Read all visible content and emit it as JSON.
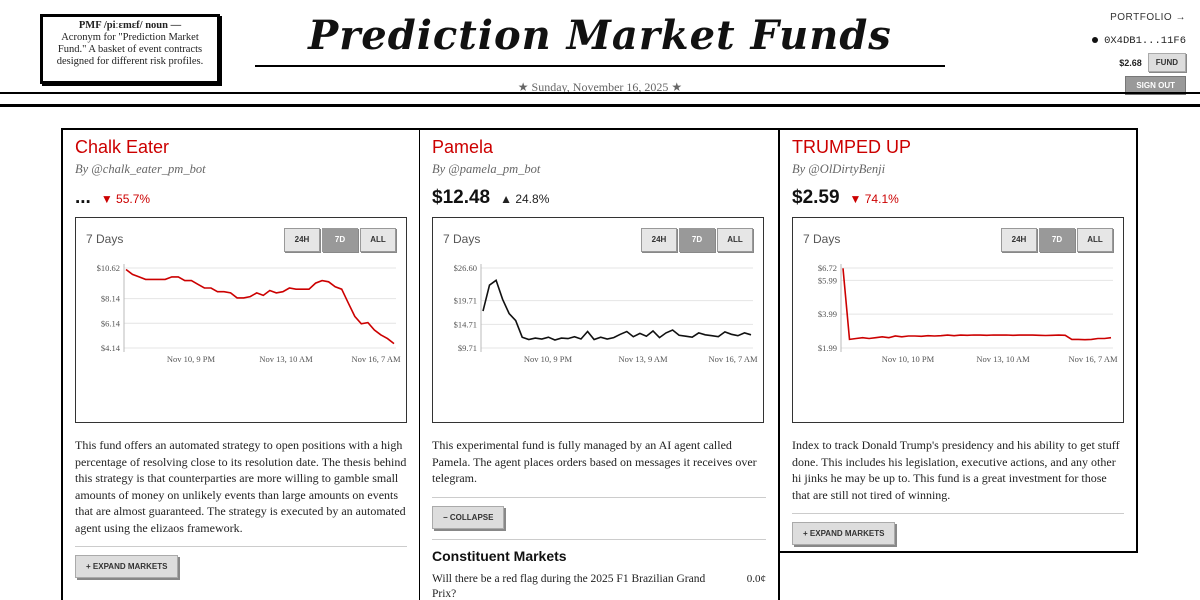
{
  "header": {
    "definition_title": "PMF /piːɛmɛf/ noun —",
    "definition_body": "Acronym for \"Prediction Market Fund.\" A basket of event contracts designed for different risk profiles.",
    "title": "Prediction Market Funds",
    "date": "★ Sunday, November 16, 2025 ★",
    "portfolio_link": "PORTFOLIO →",
    "wallet": "0X4DB1...11F6",
    "balance": "$2.68",
    "fund_button": "FUND",
    "signout_button": "SIGN OUT"
  },
  "range_buttons": [
    "24H",
    "7D",
    "ALL"
  ],
  "funds": [
    {
      "name": "Chalk Eater",
      "by": "By @chalk_eater_pm_bot",
      "price": "...",
      "change": "▼ 55.7%",
      "change_dir": "down",
      "chart_label": "7 Days",
      "line_color": "#cc0000",
      "y_ticks": [
        "$10.62",
        "$8.14",
        "$6.14",
        "$4.14"
      ],
      "x_ticks": [
        "Nov 10, 9 PM",
        "Nov 13, 10 AM",
        "Nov 16, 7 AM"
      ],
      "series": [
        10.5,
        10.1,
        9.9,
        9.7,
        9.7,
        9.7,
        9.7,
        9.9,
        9.9,
        9.6,
        9.6,
        9.3,
        9.0,
        9.0,
        8.7,
        8.7,
        8.6,
        8.2,
        8.2,
        8.3,
        8.6,
        8.4,
        8.8,
        8.6,
        8.7,
        9.0,
        8.9,
        8.9,
        8.9,
        9.4,
        9.6,
        9.5,
        9.1,
        8.9,
        7.8,
        6.7,
        6.1,
        6.2,
        5.6,
        5.2,
        4.9,
        4.5
      ],
      "description": "This fund offers an automated strategy to open positions with a high percentage of resolving close to its resolution date. The thesis behind this strategy is that counterparties are more willing to gamble small amounts of money on unlikely events than large amounts on events that are almost guaranteed. The strategy is executed by an automated agent using the elizaos framework.",
      "expand_label": "+ EXPAND MARKETS"
    },
    {
      "name": "Pamela",
      "by": "By @pamela_pm_bot",
      "price": "$12.48",
      "change": "▲ 24.8%",
      "change_dir": "up",
      "chart_label": "7 Days",
      "line_color": "#111111",
      "y_ticks": [
        "$26.60",
        "$19.71",
        "$14.71",
        "$9.71"
      ],
      "x_ticks": [
        "Nov 10, 9 PM",
        "Nov 13, 9 AM",
        "Nov 16, 7 AM"
      ],
      "series": [
        17.5,
        23.0,
        24.0,
        20.0,
        17.0,
        15.5,
        12.0,
        11.5,
        11.8,
        11.6,
        12.0,
        11.4,
        11.8,
        11.7,
        12.1,
        11.6,
        13.2,
        11.5,
        12.0,
        11.6,
        11.9,
        12.6,
        13.2,
        12.1,
        12.8,
        12.2,
        13.3,
        11.9,
        12.9,
        13.5,
        12.4,
        12.2,
        12.0,
        12.9,
        12.5,
        12.3,
        12.1,
        13.1,
        12.6,
        12.3,
        12.9,
        12.5
      ],
      "description": "This experimental fund is fully managed by an AI agent called Pamela. The agent places orders based on messages it receives over telegram.",
      "collapse_label": "− COLLAPSE",
      "constituent_title": "Constituent Markets",
      "markets": [
        {
          "question": "Will there be a red flag during the 2025 F1 Brazilian Grand Prix?",
          "price": "0.0¢"
        }
      ]
    },
    {
      "name": "TRUMPED UP",
      "by": "By @OlDirtyBenji",
      "price": "$2.59",
      "change": "▼ 74.1%",
      "change_dir": "down",
      "chart_label": "7 Days",
      "line_color": "#cc0000",
      "y_ticks": [
        "$6.72",
        "$5.99",
        "$3.99",
        "$1.99"
      ],
      "x_ticks": [
        "Nov 10, 10 PM",
        "Nov 13, 10 AM",
        "Nov 16, 7 AM"
      ],
      "series": [
        6.7,
        2.5,
        2.55,
        2.6,
        2.55,
        2.6,
        2.65,
        2.6,
        2.7,
        2.65,
        2.7,
        2.7,
        2.68,
        2.72,
        2.7,
        2.72,
        2.75,
        2.72,
        2.75,
        2.74,
        2.76,
        2.75,
        2.74,
        2.76,
        2.75,
        2.76,
        2.74,
        2.75,
        2.76,
        2.75,
        2.74,
        2.73,
        2.74,
        2.75,
        2.74,
        2.5,
        2.5,
        2.48,
        2.5,
        2.55,
        2.55,
        2.6
      ],
      "description": "Index to track Donald Trump's presidency and his ability to get stuff done. This includes his legislation, executive actions, and any other hi jinks he may be up to. This fund is a great investment for those that are still not tired of winning.",
      "expand_label": "+ EXPAND MARKETS"
    }
  ]
}
